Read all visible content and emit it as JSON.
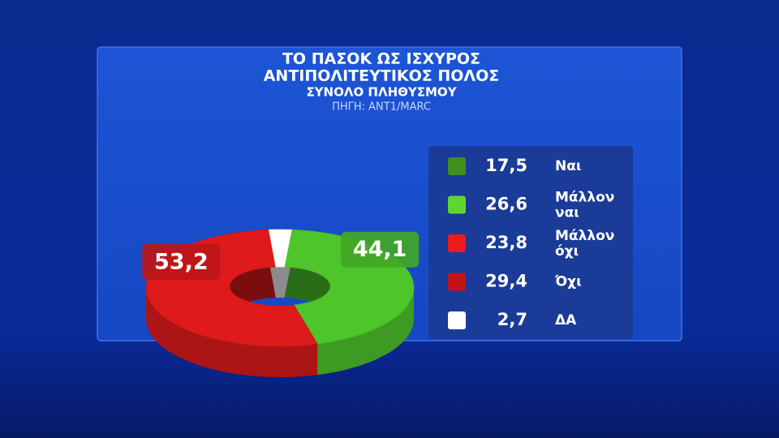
{
  "chart_data": {
    "type": "donut3d",
    "title": [
      "ΤΟ ΠΑΣΟΚ ΩΣ ΙΣΧΥΡΟΣ",
      "ΑΝΤΙΠΟΛΙΤΕΥΤΙΚΟΣ ΠΟΛΟΣ"
    ],
    "subtitle": "ΣΥΝΟΛΟ ΠΛΗΘΥΣΜΟΥ",
    "source": "ΠΗΓΗ: ΑΝΤ1/MARC",
    "categories": [
      "Ναι",
      "Μάλλον ναι",
      "Μάλλον όχι",
      "Όχι",
      "ΔΑ"
    ],
    "values": [
      17.5,
      26.6,
      23.8,
      29.4,
      2.7
    ],
    "value_labels": [
      "17,5",
      "26,6",
      "23,8",
      "29,4",
      "2,7"
    ],
    "colors": [
      "#3f8f1c",
      "#5fd62c",
      "#ea1c1c",
      "#c41318",
      "#ffffff"
    ],
    "groups": [
      {
        "value": 44.1,
        "label": "44,1",
        "color": "#4ec52b"
      },
      {
        "value": 53.2,
        "label": "53,2",
        "color": "#de1a1b"
      }
    ]
  }
}
